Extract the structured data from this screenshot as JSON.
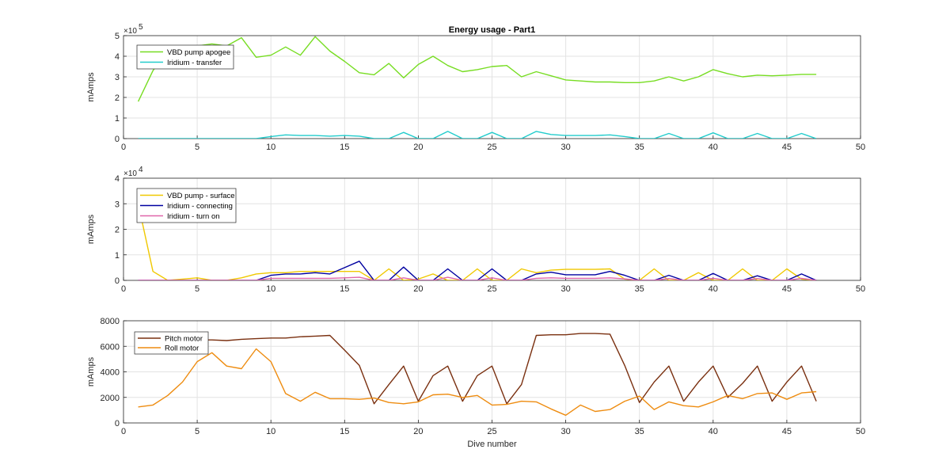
{
  "chart_data": [
    {
      "type": "line",
      "title": "Energy usage - Part1",
      "xlabel": "",
      "ylabel": "mAmps",
      "xlim": [
        0,
        50
      ],
      "ylim": [
        0,
        5
      ],
      "y_multiplier_label": "×10",
      "y_multiplier_exp": "5",
      "grid": true,
      "legend_position": "top-left",
      "xticks": [
        "0",
        "5",
        "10",
        "15",
        "20",
        "25",
        "30",
        "35",
        "40",
        "45",
        "50"
      ],
      "yticks": [
        "0",
        "1",
        "2",
        "3",
        "4",
        "5"
      ],
      "series": [
        {
          "name": "VBD pump apogee",
          "color": "#77dd22",
          "x": [
            1,
            2,
            3,
            4,
            5,
            6,
            7,
            8,
            9,
            10,
            11,
            12,
            13,
            14,
            15,
            16,
            17,
            18,
            19,
            20,
            21,
            22,
            23,
            24,
            25,
            26,
            27,
            28,
            29,
            30,
            31,
            32,
            33,
            34,
            35,
            36,
            37,
            38,
            39,
            40,
            41,
            42,
            43,
            44,
            45,
            46,
            47
          ],
          "y": [
            1.8,
            3.3,
            4.3,
            4.4,
            4.5,
            4.6,
            4.5,
            4.9,
            3.95,
            4.05,
            4.45,
            4.05,
            4.95,
            4.25,
            3.75,
            3.2,
            3.1,
            3.65,
            2.95,
            3.6,
            4.0,
            3.55,
            3.25,
            3.35,
            3.5,
            3.55,
            3.0,
            3.25,
            3.05,
            2.85,
            2.8,
            2.75,
            2.75,
            2.72,
            2.72,
            2.8,
            3.0,
            2.8,
            3.0,
            3.35,
            3.15,
            3.0,
            3.08,
            3.05,
            3.08,
            3.12,
            3.12
          ]
        },
        {
          "name": "Iridium - transfer",
          "color": "#22cccc",
          "x": [
            1,
            2,
            3,
            4,
            5,
            6,
            7,
            8,
            9,
            10,
            11,
            12,
            13,
            14,
            15,
            16,
            17,
            18,
            19,
            20,
            21,
            22,
            23,
            24,
            25,
            26,
            27,
            28,
            29,
            30,
            31,
            32,
            33,
            34,
            35,
            36,
            37,
            38,
            39,
            40,
            41,
            42,
            43,
            44,
            45,
            46,
            47
          ],
          "y": [
            0,
            0,
            0,
            0,
            0,
            0,
            0,
            0,
            0,
            0.1,
            0.18,
            0.15,
            0.15,
            0.12,
            0.15,
            0.12,
            0,
            0,
            0.3,
            0,
            0,
            0.35,
            0,
            0,
            0.3,
            0,
            0,
            0.35,
            0.2,
            0.15,
            0.15,
            0.15,
            0.18,
            0.1,
            0,
            0,
            0.25,
            0,
            0,
            0.28,
            0,
            0,
            0.25,
            0,
            0,
            0.25,
            0
          ]
        }
      ]
    },
    {
      "type": "line",
      "title": "",
      "xlabel": "",
      "ylabel": "mAmps",
      "xlim": [
        0,
        50
      ],
      "ylim": [
        0,
        4
      ],
      "y_multiplier_label": "×10",
      "y_multiplier_exp": "4",
      "grid": true,
      "legend_position": "top-left",
      "xticks": [
        "0",
        "5",
        "10",
        "15",
        "20",
        "25",
        "30",
        "35",
        "40",
        "45",
        "50"
      ],
      "yticks": [
        "0",
        "1",
        "2",
        "3",
        "4"
      ],
      "series": [
        {
          "name": "VBD pump - surface",
          "color": "#f0c800",
          "x": [
            1,
            2,
            3,
            4,
            5,
            6,
            7,
            8,
            9,
            10,
            11,
            12,
            13,
            14,
            15,
            16,
            17,
            18,
            19,
            20,
            21,
            22,
            23,
            24,
            25,
            26,
            27,
            28,
            29,
            30,
            31,
            32,
            33,
            34,
            35,
            36,
            37,
            38,
            39,
            40,
            41,
            42,
            43,
            44,
            45,
            46,
            47
          ],
          "y": [
            3.0,
            0.35,
            0,
            0.05,
            0.1,
            0,
            0,
            0.1,
            0.25,
            0.3,
            0.3,
            0.35,
            0.35,
            0.35,
            0.35,
            0.35,
            0,
            0.45,
            0,
            0.05,
            0.25,
            0,
            0,
            0.45,
            0,
            0,
            0.45,
            0.3,
            0.4,
            0.43,
            0.43,
            0.43,
            0.45,
            0.05,
            0,
            0.45,
            0,
            0,
            0.3,
            0,
            0,
            0.45,
            0,
            0,
            0.45,
            0.05,
            0
          ]
        },
        {
          "name": "Iridium - connecting",
          "color": "#0000a0",
          "x": [
            1,
            2,
            3,
            4,
            5,
            6,
            7,
            8,
            9,
            10,
            11,
            12,
            13,
            14,
            15,
            16,
            17,
            18,
            19,
            20,
            21,
            22,
            23,
            24,
            25,
            26,
            27,
            28,
            29,
            30,
            31,
            32,
            33,
            34,
            35,
            36,
            37,
            38,
            39,
            40,
            41,
            42,
            43,
            44,
            45,
            46,
            47
          ],
          "y": [
            0,
            0,
            0,
            0,
            0,
            0,
            0,
            0,
            0,
            0.2,
            0.25,
            0.25,
            0.3,
            0.25,
            0.5,
            0.75,
            0,
            0,
            0.52,
            0,
            0,
            0.45,
            0,
            0,
            0.45,
            0,
            0,
            0.25,
            0.32,
            0.22,
            0.22,
            0.22,
            0.35,
            0.2,
            0,
            0,
            0.2,
            0,
            0,
            0.27,
            0,
            0,
            0.18,
            0,
            0,
            0.25,
            0
          ]
        },
        {
          "name": "Iridium - turn on",
          "color": "#e066aa",
          "x": [
            1,
            2,
            3,
            4,
            5,
            6,
            7,
            8,
            9,
            10,
            11,
            12,
            13,
            14,
            15,
            16,
            17,
            18,
            19,
            20,
            21,
            22,
            23,
            24,
            25,
            26,
            27,
            28,
            29,
            30,
            31,
            32,
            33,
            34,
            35,
            36,
            37,
            38,
            39,
            40,
            41,
            42,
            43,
            44,
            45,
            46,
            47
          ],
          "y": [
            0,
            0,
            0,
            0,
            0,
            0,
            0,
            0,
            0,
            0.08,
            0.08,
            0.08,
            0.08,
            0.08,
            0.1,
            0.12,
            0,
            0,
            0.1,
            0,
            0,
            0.12,
            0,
            0,
            0.1,
            0,
            0,
            0.08,
            0.1,
            0.08,
            0.08,
            0.08,
            0.1,
            0.06,
            0,
            0,
            0.07,
            0,
            0,
            0.08,
            0,
            0,
            0.07,
            0,
            0,
            0.08,
            0
          ]
        }
      ]
    },
    {
      "type": "line",
      "title": "",
      "xlabel": "Dive number",
      "ylabel": "mAmps",
      "xlim": [
        0,
        50
      ],
      "ylim": [
        0,
        8000
      ],
      "grid": true,
      "legend_position": "top-left",
      "xticks": [
        "0",
        "5",
        "10",
        "15",
        "20",
        "25",
        "30",
        "35",
        "40",
        "45",
        "50"
      ],
      "yticks": [
        "0",
        "2000",
        "4000",
        "6000",
        "8000"
      ],
      "series": [
        {
          "name": "Pitch motor",
          "color": "#7a3010",
          "x": [
            1,
            2,
            3,
            4,
            5,
            6,
            7,
            8,
            9,
            10,
            11,
            12,
            13,
            14,
            15,
            16,
            17,
            18,
            19,
            20,
            21,
            22,
            23,
            24,
            25,
            26,
            27,
            28,
            29,
            30,
            31,
            32,
            33,
            34,
            35,
            36,
            37,
            38,
            39,
            40,
            41,
            42,
            43,
            44,
            45,
            46,
            47
          ],
          "y": [
            6500,
            6450,
            6500,
            6550,
            6500,
            6500,
            6450,
            6550,
            6600,
            6650,
            6650,
            6750,
            6800,
            6850,
            5700,
            4500,
            1500,
            3000,
            4450,
            1700,
            3700,
            4450,
            1700,
            3700,
            4450,
            1500,
            3000,
            6850,
            6900,
            6900,
            7000,
            7000,
            6950,
            4500,
            1600,
            3200,
            4450,
            1700,
            3200,
            4450,
            2000,
            3100,
            4450,
            1700,
            3200,
            4450,
            1700
          ]
        },
        {
          "name": "Roll motor",
          "color": "#ee8c10",
          "x": [
            1,
            2,
            3,
            4,
            5,
            6,
            7,
            8,
            9,
            10,
            11,
            12,
            13,
            14,
            15,
            16,
            17,
            18,
            19,
            20,
            21,
            22,
            23,
            24,
            25,
            26,
            27,
            28,
            29,
            30,
            31,
            32,
            33,
            34,
            35,
            36,
            37,
            38,
            39,
            40,
            41,
            42,
            43,
            44,
            45,
            46,
            47
          ],
          "y": [
            1250,
            1400,
            2150,
            3200,
            4800,
            5500,
            4450,
            4250,
            5800,
            4800,
            2300,
            1700,
            2400,
            1900,
            1900,
            1850,
            1950,
            1600,
            1500,
            1650,
            2200,
            2250,
            2000,
            2150,
            1400,
            1450,
            1700,
            1650,
            1100,
            600,
            1400,
            900,
            1050,
            1700,
            2100,
            1050,
            1650,
            1350,
            1250,
            1650,
            2150,
            1900,
            2300,
            2350,
            1850,
            2350,
            2450
          ]
        }
      ]
    }
  ]
}
